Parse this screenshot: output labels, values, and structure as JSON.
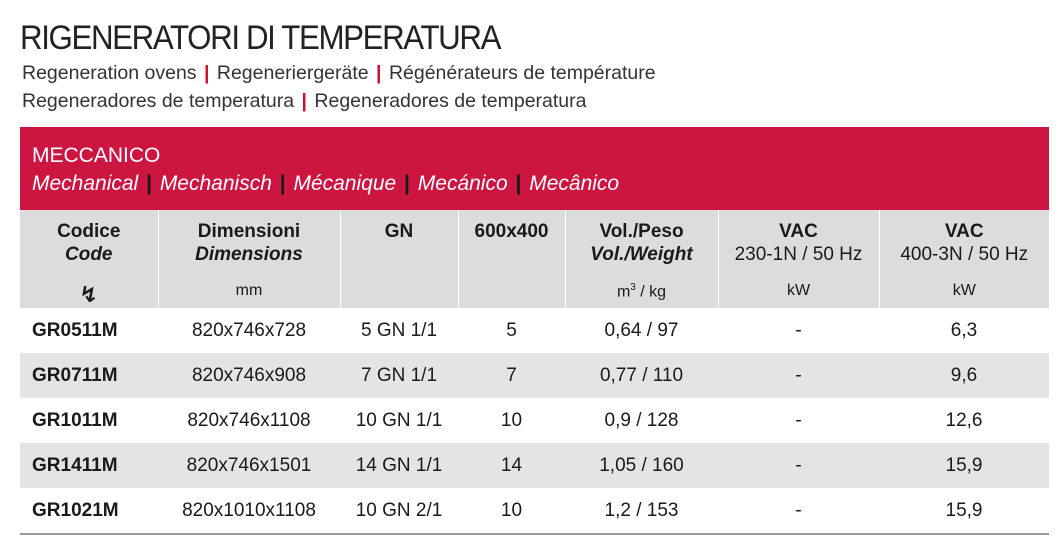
{
  "header": {
    "title": "RIGENERATORI DI TEMPERATURA",
    "subtitle_line1": [
      "Regeneration ovens",
      "Regeneriergeräte",
      "Régénérateurs de température"
    ],
    "subtitle_line2": [
      "Regeneradores de temperatura",
      "Regeneradores de temperatura"
    ]
  },
  "section": {
    "name": "MECCANICO",
    "translations": [
      "Mechanical",
      "Mechanisch",
      "Mécanique",
      "Mecánico",
      "Mecânico"
    ]
  },
  "columns": {
    "code": {
      "l1": "Codice",
      "l2": "Code",
      "unit": "↯"
    },
    "dim": {
      "l1": "Dimensioni",
      "l2": "Dimensions",
      "unit": "mm"
    },
    "gn": {
      "l1": "GN"
    },
    "size": {
      "l1": "600x400"
    },
    "vol": {
      "l1": "Vol./Peso",
      "l2": "Vol./Weight",
      "unit_prefix": "m",
      "unit_sup": "3",
      "unit_suffix": " / kg"
    },
    "vac1": {
      "l1": "VAC",
      "l2": "230-1N / 50 Hz",
      "unit": "kW"
    },
    "vac3": {
      "l1": "VAC",
      "l2": "400-3N / 50 Hz",
      "unit": "kW"
    }
  },
  "separator": "|",
  "rows": [
    {
      "code": "GR0511M",
      "dim": "820x746x728",
      "gn": "5 GN 1/1",
      "size": "5",
      "vol": "0,64 / 97",
      "vac1": "-",
      "vac3": "6,3"
    },
    {
      "code": "GR0711M",
      "dim": "820x746x908",
      "gn": "7 GN 1/1",
      "size": "7",
      "vol": "0,77 / 110",
      "vac1": "-",
      "vac3": "9,6"
    },
    {
      "code": "GR1011M",
      "dim": "820x746x1108",
      "gn": "10 GN 1/1",
      "size": "10",
      "vol": "0,9 / 128",
      "vac1": "-",
      "vac3": "12,6"
    },
    {
      "code": "GR1411M",
      "dim": "820x746x1501",
      "gn": "14 GN 1/1",
      "size": "14",
      "vol": "1,05 / 160",
      "vac1": "-",
      "vac3": "15,9"
    },
    {
      "code": "GR1021M",
      "dim": "820x1010x1108",
      "gn": "10 GN 2/1",
      "size": "10",
      "vol": "1,2 / 153",
      "vac1": "-",
      "vac3": "15,9"
    }
  ],
  "colors": {
    "accent": "#cc1641",
    "header_bg": "#dcdcdc",
    "stripe": "#e4e4e4"
  }
}
